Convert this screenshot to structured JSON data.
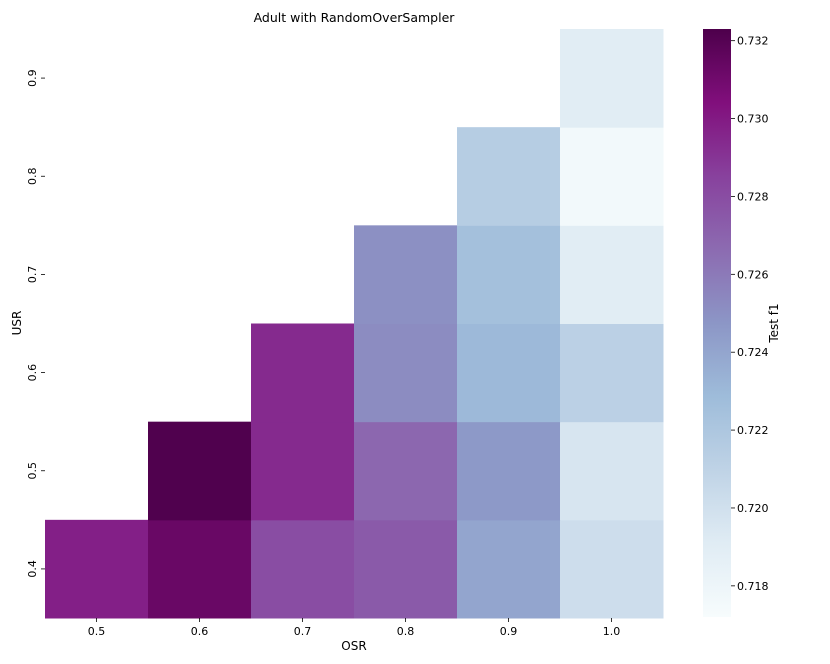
{
  "chart_data": {
    "type": "heatmap",
    "title": "Adult with RandomOverSampler",
    "xlabel": "OSR",
    "ylabel": "USR",
    "x_categories": [
      "0.5",
      "0.6",
      "0.7",
      "0.8",
      "0.9",
      "1.0"
    ],
    "y_categories": [
      "0.4",
      "0.5",
      "0.6",
      "0.7",
      "0.8",
      "0.9"
    ],
    "cells": [
      {
        "x": "0.5",
        "y": "0.4",
        "value": 0.7298
      },
      {
        "x": "0.6",
        "y": "0.4",
        "value": 0.7313
      },
      {
        "x": "0.7",
        "y": "0.4",
        "value": 0.728
      },
      {
        "x": "0.8",
        "y": "0.4",
        "value": 0.7274
      },
      {
        "x": "0.9",
        "y": "0.4",
        "value": 0.724
      },
      {
        "x": "1.0",
        "y": "0.4",
        "value": 0.7202
      },
      {
        "x": "0.6",
        "y": "0.5",
        "value": 0.7322
      },
      {
        "x": "0.7",
        "y": "0.5",
        "value": 0.7294
      },
      {
        "x": "0.8",
        "y": "0.5",
        "value": 0.7268
      },
      {
        "x": "0.9",
        "y": "0.5",
        "value": 0.7246
      },
      {
        "x": "1.0",
        "y": "0.5",
        "value": 0.7196
      },
      {
        "x": "0.7",
        "y": "0.6",
        "value": 0.7294
      },
      {
        "x": "0.8",
        "y": "0.6",
        "value": 0.7252
      },
      {
        "x": "0.9",
        "y": "0.6",
        "value": 0.723
      },
      {
        "x": "1.0",
        "y": "0.6",
        "value": 0.7212
      },
      {
        "x": "0.8",
        "y": "0.7",
        "value": 0.725
      },
      {
        "x": "0.9",
        "y": "0.7",
        "value": 0.7225
      },
      {
        "x": "1.0",
        "y": "0.7",
        "value": 0.719
      },
      {
        "x": "0.9",
        "y": "0.8",
        "value": 0.7215
      },
      {
        "x": "1.0",
        "y": "0.8",
        "value": 0.7176
      },
      {
        "x": "1.0",
        "y": "0.9",
        "value": 0.719
      }
    ],
    "colorbar": {
      "label": "Test f1",
      "vmin": 0.7172,
      "vmax": 0.7323,
      "ticks": [
        "0.718",
        "0.720",
        "0.722",
        "0.724",
        "0.726",
        "0.728",
        "0.730",
        "0.732"
      ],
      "colormap": "BuPu",
      "colors": [
        "#f7fcfd",
        "#e0ecf4",
        "#bfd3e6",
        "#9ebcda",
        "#8c96c6",
        "#8c6bb1",
        "#88419d",
        "#810f7c",
        "#4d004b"
      ]
    },
    "grid": false,
    "legend": "colorbar-right"
  }
}
